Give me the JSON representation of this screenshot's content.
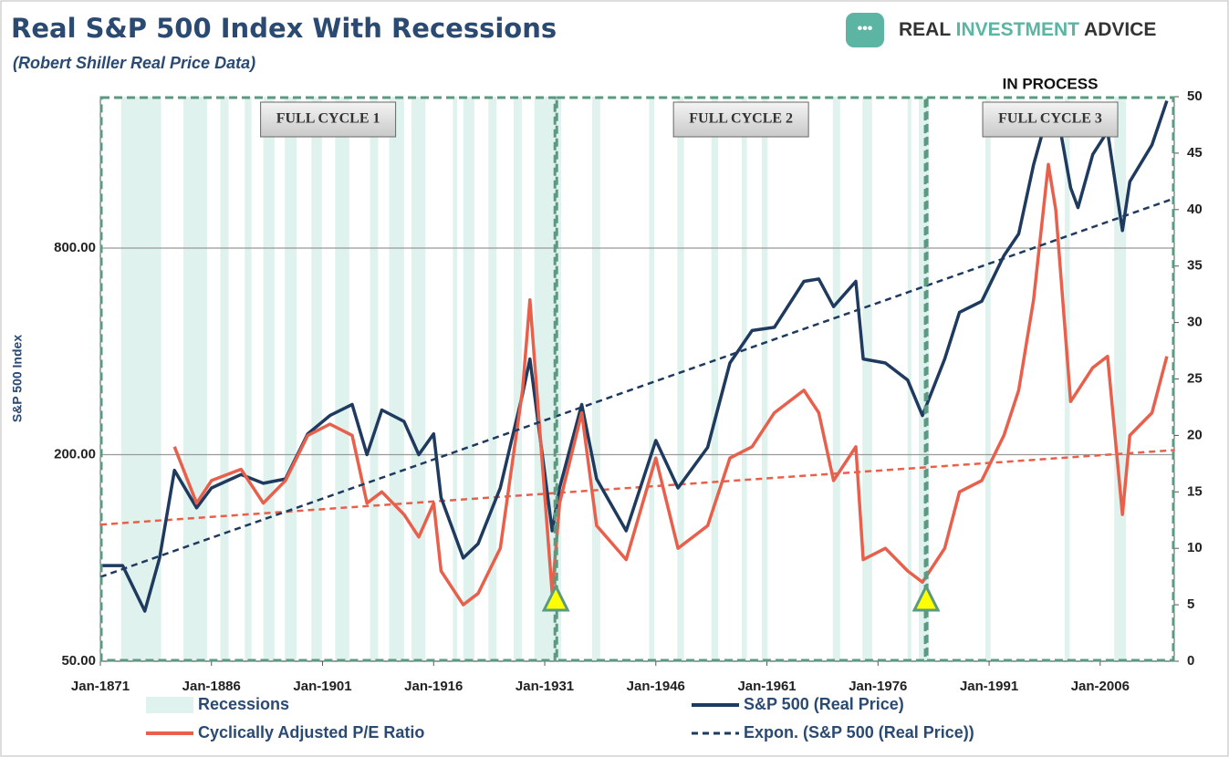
{
  "chart_data": {
    "type": "line",
    "title": "Real S&P 500 Index With Recessions",
    "subtitle": "(Robert Shiller Real Price Data)",
    "brand": [
      "REAL",
      "INVESTMENT",
      "ADVICE"
    ],
    "ylabel": "S&P 500 Index",
    "xlim": [
      1871,
      2016
    ],
    "xticks": [
      {
        "value": 1871,
        "label": "Jan-1871"
      },
      {
        "value": 1886,
        "label": "Jan-1886"
      },
      {
        "value": 1901,
        "label": "Jan-1901"
      },
      {
        "value": 1916,
        "label": "Jan-1916"
      },
      {
        "value": 1931,
        "label": "Jan-1931"
      },
      {
        "value": 1946,
        "label": "Jan-1946"
      },
      {
        "value": 1961,
        "label": "Jan-1961"
      },
      {
        "value": 1976,
        "label": "Jan-1976"
      },
      {
        "value": 1991,
        "label": "Jan-1991"
      },
      {
        "value": 2006,
        "label": "Jan-2006"
      }
    ],
    "ylim": [
      50,
      2210
    ],
    "yticks": [
      {
        "value": 50,
        "label": "50.00"
      },
      {
        "value": 200,
        "label": "200.00"
      },
      {
        "value": 800,
        "label": "800.00"
      }
    ],
    "log_scale": true,
    "grid": true,
    "y2lim": [
      0,
      50
    ],
    "y2ticks": [
      0,
      5,
      10,
      15,
      20,
      25,
      30,
      35,
      40,
      45,
      50
    ],
    "recessions_label": "Recessions",
    "recession_color": "#dff2ee",
    "recessions": [
      [
        1873.8,
        1879.2
      ],
      [
        1882.2,
        1885.4
      ],
      [
        1887.2,
        1888.3
      ],
      [
        1890.5,
        1891.4
      ],
      [
        1893.0,
        1894.5
      ],
      [
        1895.9,
        1897.5
      ],
      [
        1899.5,
        1900.9
      ],
      [
        1902.7,
        1904.6
      ],
      [
        1907.4,
        1908.5
      ],
      [
        1910.0,
        1912.0
      ],
      [
        1913.0,
        1914.9
      ],
      [
        1918.6,
        1919.2
      ],
      [
        1920.0,
        1921.5
      ],
      [
        1923.4,
        1924.5
      ],
      [
        1926.8,
        1927.9
      ],
      [
        1929.6,
        1933.2
      ],
      [
        1937.4,
        1938.5
      ],
      [
        1945.1,
        1945.8
      ],
      [
        1948.9,
        1949.8
      ],
      [
        1953.5,
        1954.4
      ],
      [
        1957.6,
        1958.3
      ],
      [
        1960.3,
        1961.1
      ],
      [
        1969.9,
        1970.9
      ],
      [
        1973.9,
        1975.2
      ],
      [
        1980.0,
        1980.5
      ],
      [
        1981.5,
        1982.9
      ],
      [
        1990.5,
        1991.2
      ],
      [
        2001.2,
        2001.9
      ],
      [
        2007.9,
        2009.5
      ]
    ],
    "series": [
      {
        "name": "S&P 500 (Real Price)",
        "color": "#1f3a5f",
        "x": [
          1871,
          1874,
          1877,
          1879,
          1881,
          1884,
          1886,
          1890,
          1893,
          1896,
          1899,
          1902,
          1905,
          1907,
          1909,
          1912,
          1914,
          1916,
          1917,
          1920,
          1922,
          1925,
          1928,
          1929,
          1932,
          1933,
          1936,
          1938,
          1942,
          1946,
          1949,
          1953,
          1956,
          1959,
          1962,
          1966,
          1968,
          1970,
          1973,
          1974,
          1977,
          1980,
          1982,
          1985,
          1987,
          1990,
          1993,
          1995,
          1997,
          1999,
          2000,
          2002,
          2003,
          2005,
          2007,
          2009,
          2010,
          2013,
          2015
        ],
        "values": [
          95,
          95,
          70,
          100,
          180,
          140,
          160,
          175,
          165,
          170,
          230,
          260,
          280,
          200,
          270,
          250,
          200,
          230,
          150,
          100,
          110,
          160,
          300,
          380,
          120,
          160,
          280,
          170,
          120,
          220,
          160,
          210,
          370,
          460,
          470,
          640,
          650,
          540,
          640,
          380,
          370,
          330,
          260,
          380,
          520,
          560,
          760,
          880,
          1400,
          2000,
          2100,
          1200,
          1050,
          1500,
          1750,
          900,
          1250,
          1600,
          2150
        ]
      },
      {
        "name": "Cyclically Adjusted P/E Ratio",
        "color": "#e8604c",
        "axis": "y2",
        "x": [
          1871,
          1874,
          1877,
          1879,
          1881,
          1884,
          1886,
          1890,
          1893,
          1896,
          1899,
          1902,
          1905,
          1907,
          1909,
          1912,
          1914,
          1916,
          1917,
          1920,
          1922,
          1925,
          1928,
          1929,
          1932,
          1933,
          1936,
          1938,
          1942,
          1946,
          1949,
          1953,
          1956,
          1959,
          1962,
          1966,
          1968,
          1970,
          1973,
          1974,
          1977,
          1980,
          1982,
          1985,
          1987,
          1990,
          1993,
          1995,
          1997,
          1999,
          2000,
          2002,
          2003,
          2005,
          2007,
          2009,
          2010,
          2013,
          2015
        ],
        "values": [
          null,
          null,
          null,
          null,
          19,
          14,
          16,
          17,
          14,
          16,
          20,
          21,
          20,
          14,
          15,
          13,
          11,
          14,
          8,
          5,
          6,
          10,
          24,
          32,
          6,
          14,
          22,
          12,
          9,
          18,
          10,
          12,
          18,
          19,
          22,
          24,
          22,
          16,
          19,
          9,
          10,
          8,
          7,
          10,
          15,
          16,
          20,
          24,
          32,
          44,
          40,
          23,
          24,
          26,
          27,
          13,
          20,
          22,
          27
        ]
      },
      {
        "name": "Expon. (S&P 500 (Real Price))",
        "color": "#1f3a5f",
        "dashed": true,
        "x": [
          1871,
          2016
        ],
        "values": [
          88,
          1117
        ]
      }
    ],
    "cape_trend": {
      "color": "#e8604c",
      "dashed": true,
      "axis": "y2",
      "x": [
        1871,
        2016
      ],
      "values": [
        12.1,
        18.7
      ]
    },
    "cycles": [
      {
        "label": "FULL CYCLE 1",
        "start": 1871,
        "end": 1932.5
      },
      {
        "label": "FULL CYCLE 2",
        "start": 1932.5,
        "end": 1982.5
      },
      {
        "label": "FULL CYCLE 3",
        "start": 1982.5,
        "end": 2016,
        "note": "IN PROCESS"
      }
    ]
  }
}
